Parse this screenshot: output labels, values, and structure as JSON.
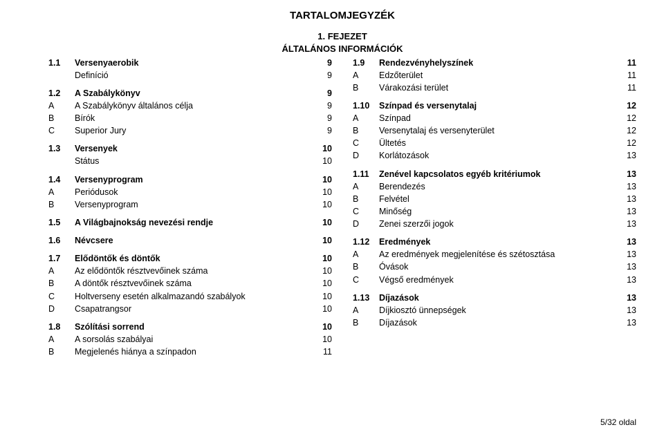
{
  "title": "TARTALOMJEGYZÉK",
  "chapter_line1": "1. FEJEZET",
  "chapter_line2": "ÁLTALÁNOS INFORMÁCIÓK",
  "left": {
    "s1": {
      "code": "1.1",
      "label": "Versenyaerobik",
      "page": "9"
    },
    "s1a": {
      "code": "",
      "label": "Definíció",
      "page": "9"
    },
    "s2": {
      "code": "1.2",
      "label": "A Szabálykönyv",
      "page": "9"
    },
    "s2a": {
      "code": "A",
      "label": "A Szabálykönyv általános célja",
      "page": "9"
    },
    "s2b": {
      "code": "B",
      "label": "Bírók",
      "page": "9"
    },
    "s2c": {
      "code": "C",
      "label": "Superior Jury",
      "page": "9"
    },
    "s3": {
      "code": "1.3",
      "label": "Versenyek",
      "page": "10"
    },
    "s3a": {
      "code": "",
      "label": "Státus",
      "page": "10"
    },
    "s4": {
      "code": "1.4",
      "label": "Versenyprogram",
      "page": "10"
    },
    "s4a": {
      "code": "A",
      "label": "Periódusok",
      "page": "10"
    },
    "s4b": {
      "code": "B",
      "label": "Versenyprogram",
      "page": "10"
    },
    "s5": {
      "code": "1.5",
      "label": "A Világbajnokság nevezési rendje",
      "page": "10"
    },
    "s6": {
      "code": "1.6",
      "label": "Névcsere",
      "page": "10"
    },
    "s7": {
      "code": "1.7",
      "label": "Elődöntők és döntők",
      "page": "10"
    },
    "s7a": {
      "code": "A",
      "label": "Az elődöntők résztvevőinek száma",
      "page": "10"
    },
    "s7b": {
      "code": "B",
      "label": "A döntők résztvevőinek száma",
      "page": "10"
    },
    "s7c": {
      "code": "C",
      "label": "Holtverseny esetén alkalmazandó szabályok",
      "page": "10"
    },
    "s7d": {
      "code": "D",
      "label": "Csapatrangsor",
      "page": "10"
    },
    "s8": {
      "code": "1.8",
      "label": "Szólítási sorrend",
      "page": "10"
    },
    "s8a": {
      "code": "A",
      "label": "A sorsolás szabályai",
      "page": "10"
    },
    "s8b": {
      "code": "B",
      "label": "Megjelenés hiánya a színpadon",
      "page": "11"
    }
  },
  "right": {
    "s9": {
      "code": "1.9",
      "label": "Rendezvényhelyszínek",
      "page": "11"
    },
    "s9a": {
      "code": "A",
      "label": "Edzőterület",
      "page": "11"
    },
    "s9b": {
      "code": "B",
      "label": "Várakozási terület",
      "page": "11"
    },
    "s10": {
      "code": "1.10",
      "label": "Színpad és versenytalaj",
      "page": "12"
    },
    "s10a": {
      "code": "A",
      "label": "Színpad",
      "page": "12"
    },
    "s10b": {
      "code": "B",
      "label": "Versenytalaj és versenyterület",
      "page": "12"
    },
    "s10c": {
      "code": "C",
      "label": "Ültetés",
      "page": "12"
    },
    "s10d": {
      "code": "D",
      "label": "Korlátozások",
      "page": "13"
    },
    "s11": {
      "code": "1.11",
      "label": "Zenével kapcsolatos egyéb kritériumok",
      "page": "13"
    },
    "s11a": {
      "code": "A",
      "label": "Berendezés",
      "page": "13"
    },
    "s11b": {
      "code": "B",
      "label": "Felvétel",
      "page": "13"
    },
    "s11c": {
      "code": "C",
      "label": "Minőség",
      "page": "13"
    },
    "s11d": {
      "code": "D",
      "label": "Zenei szerzői jogok",
      "page": "13"
    },
    "s12": {
      "code": "1.12",
      "label": "Eredmények",
      "page": "13"
    },
    "s12a": {
      "code": "A",
      "label": "Az eredmények megjelenítése és szétosztása",
      "page": "13"
    },
    "s12b": {
      "code": "B",
      "label": "Óvások",
      "page": "13"
    },
    "s12c": {
      "code": "C",
      "label": "Végső eredmények",
      "page": "13"
    },
    "s13": {
      "code": "1.13",
      "label": "Díjazások",
      "page": "13"
    },
    "s13a": {
      "code": "A",
      "label": "Díjkiosztó ünnepségek",
      "page": "13"
    },
    "s13b": {
      "code": "B",
      "label": "Díjazások",
      "page": "13"
    }
  },
  "footer": "5/32 oldal"
}
